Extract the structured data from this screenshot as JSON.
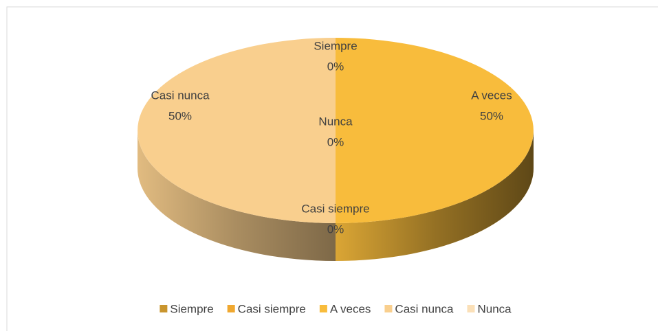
{
  "chart_data": {
    "type": "pie",
    "three_d": true,
    "categories": [
      "Siempre",
      "Casi siempre",
      "A veces",
      "Casi nunca",
      "Nunca"
    ],
    "values": [
      0,
      0,
      50,
      50,
      0
    ],
    "value_labels": [
      "0%",
      "0%",
      "50%",
      "50%",
      "0%"
    ],
    "colors": [
      "#c9952e",
      "#f0a830",
      "#f8bc3c",
      "#f9cf8e",
      "#fbe0b8"
    ],
    "legend": "bottom"
  }
}
